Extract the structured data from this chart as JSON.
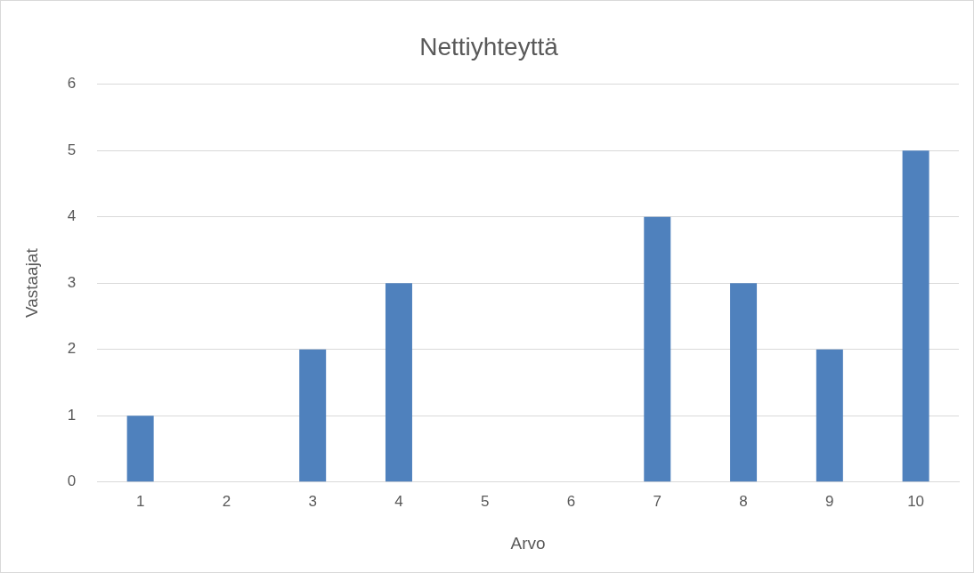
{
  "chart_data": {
    "type": "bar",
    "title": "Nettiyhteyttä",
    "xlabel": "Arvo",
    "ylabel": "Vastaajat",
    "categories": [
      "1",
      "2",
      "3",
      "4",
      "5",
      "6",
      "7",
      "8",
      "9",
      "10"
    ],
    "values": [
      1,
      0,
      2,
      3,
      0,
      0,
      4,
      3,
      2,
      5
    ],
    "color": "#4f81bd",
    "ylim": [
      0,
      6
    ],
    "yticks": [
      0,
      1,
      2,
      3,
      4,
      5,
      6
    ],
    "grid": "y",
    "legend": false
  }
}
